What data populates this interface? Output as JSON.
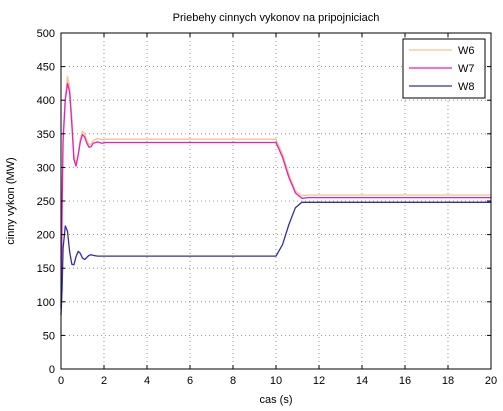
{
  "chart_data": {
    "type": "line",
    "title": "Priebehy cinnych vykonov na pripojniciach",
    "xlabel": "cas (s)",
    "ylabel": "cinny vykon (MW)",
    "xlim": [
      0,
      20
    ],
    "ylim": [
      0,
      500
    ],
    "xticks": [
      "0",
      "2",
      "4",
      "6",
      "8",
      "10",
      "12",
      "14",
      "16",
      "18",
      "20"
    ],
    "yticks": [
      "0",
      "50",
      "100",
      "150",
      "200",
      "250",
      "300",
      "350",
      "400",
      "450",
      "500"
    ],
    "grid": true,
    "legend_position": "top-right",
    "series": [
      {
        "name": "W6",
        "color": "#f5c28a",
        "x": [
          0,
          0.05,
          0.1,
          0.2,
          0.3,
          0.4,
          0.5,
          0.6,
          0.7,
          0.8,
          0.9,
          1.0,
          1.1,
          1.2,
          1.3,
          1.4,
          1.5,
          1.7,
          1.9,
          2.1,
          2.5,
          10.0,
          10.3,
          10.6,
          10.9,
          11.2,
          11.5,
          20
        ],
        "y": [
          100,
          250,
          350,
          405,
          435,
          420,
          375,
          318,
          305,
          320,
          343,
          354,
          350,
          340,
          334,
          335,
          340,
          343,
          341,
          342,
          342,
          342,
          320,
          290,
          265,
          258,
          259,
          259
        ]
      },
      {
        "name": "W7",
        "color": "#e020c0",
        "x": [
          0,
          0.05,
          0.1,
          0.2,
          0.3,
          0.4,
          0.5,
          0.6,
          0.7,
          0.8,
          0.9,
          1.0,
          1.1,
          1.2,
          1.3,
          1.4,
          1.5,
          1.7,
          1.9,
          2.1,
          2.5,
          10.0,
          10.3,
          10.6,
          10.9,
          11.2,
          11.5,
          20
        ],
        "y": [
          90,
          240,
          340,
          400,
          425,
          412,
          365,
          312,
          302,
          318,
          338,
          349,
          345,
          336,
          330,
          331,
          336,
          338,
          336,
          337,
          337,
          337,
          315,
          285,
          262,
          254,
          255,
          255
        ]
      },
      {
        "name": "W8",
        "color": "#3030a0",
        "x": [
          0,
          0.05,
          0.1,
          0.2,
          0.3,
          0.4,
          0.5,
          0.6,
          0.7,
          0.8,
          0.9,
          1.0,
          1.1,
          1.2,
          1.3,
          1.4,
          1.5,
          1.7,
          1.9,
          2.1,
          2.5,
          10.0,
          10.3,
          10.6,
          10.9,
          11.2,
          11.5,
          20
        ],
        "y": [
          80,
          120,
          180,
          213,
          205,
          175,
          156,
          155,
          167,
          175,
          172,
          165,
          163,
          166,
          169,
          170,
          169,
          168,
          168,
          168,
          168,
          168,
          185,
          215,
          240,
          248,
          248,
          248
        ]
      }
    ]
  }
}
